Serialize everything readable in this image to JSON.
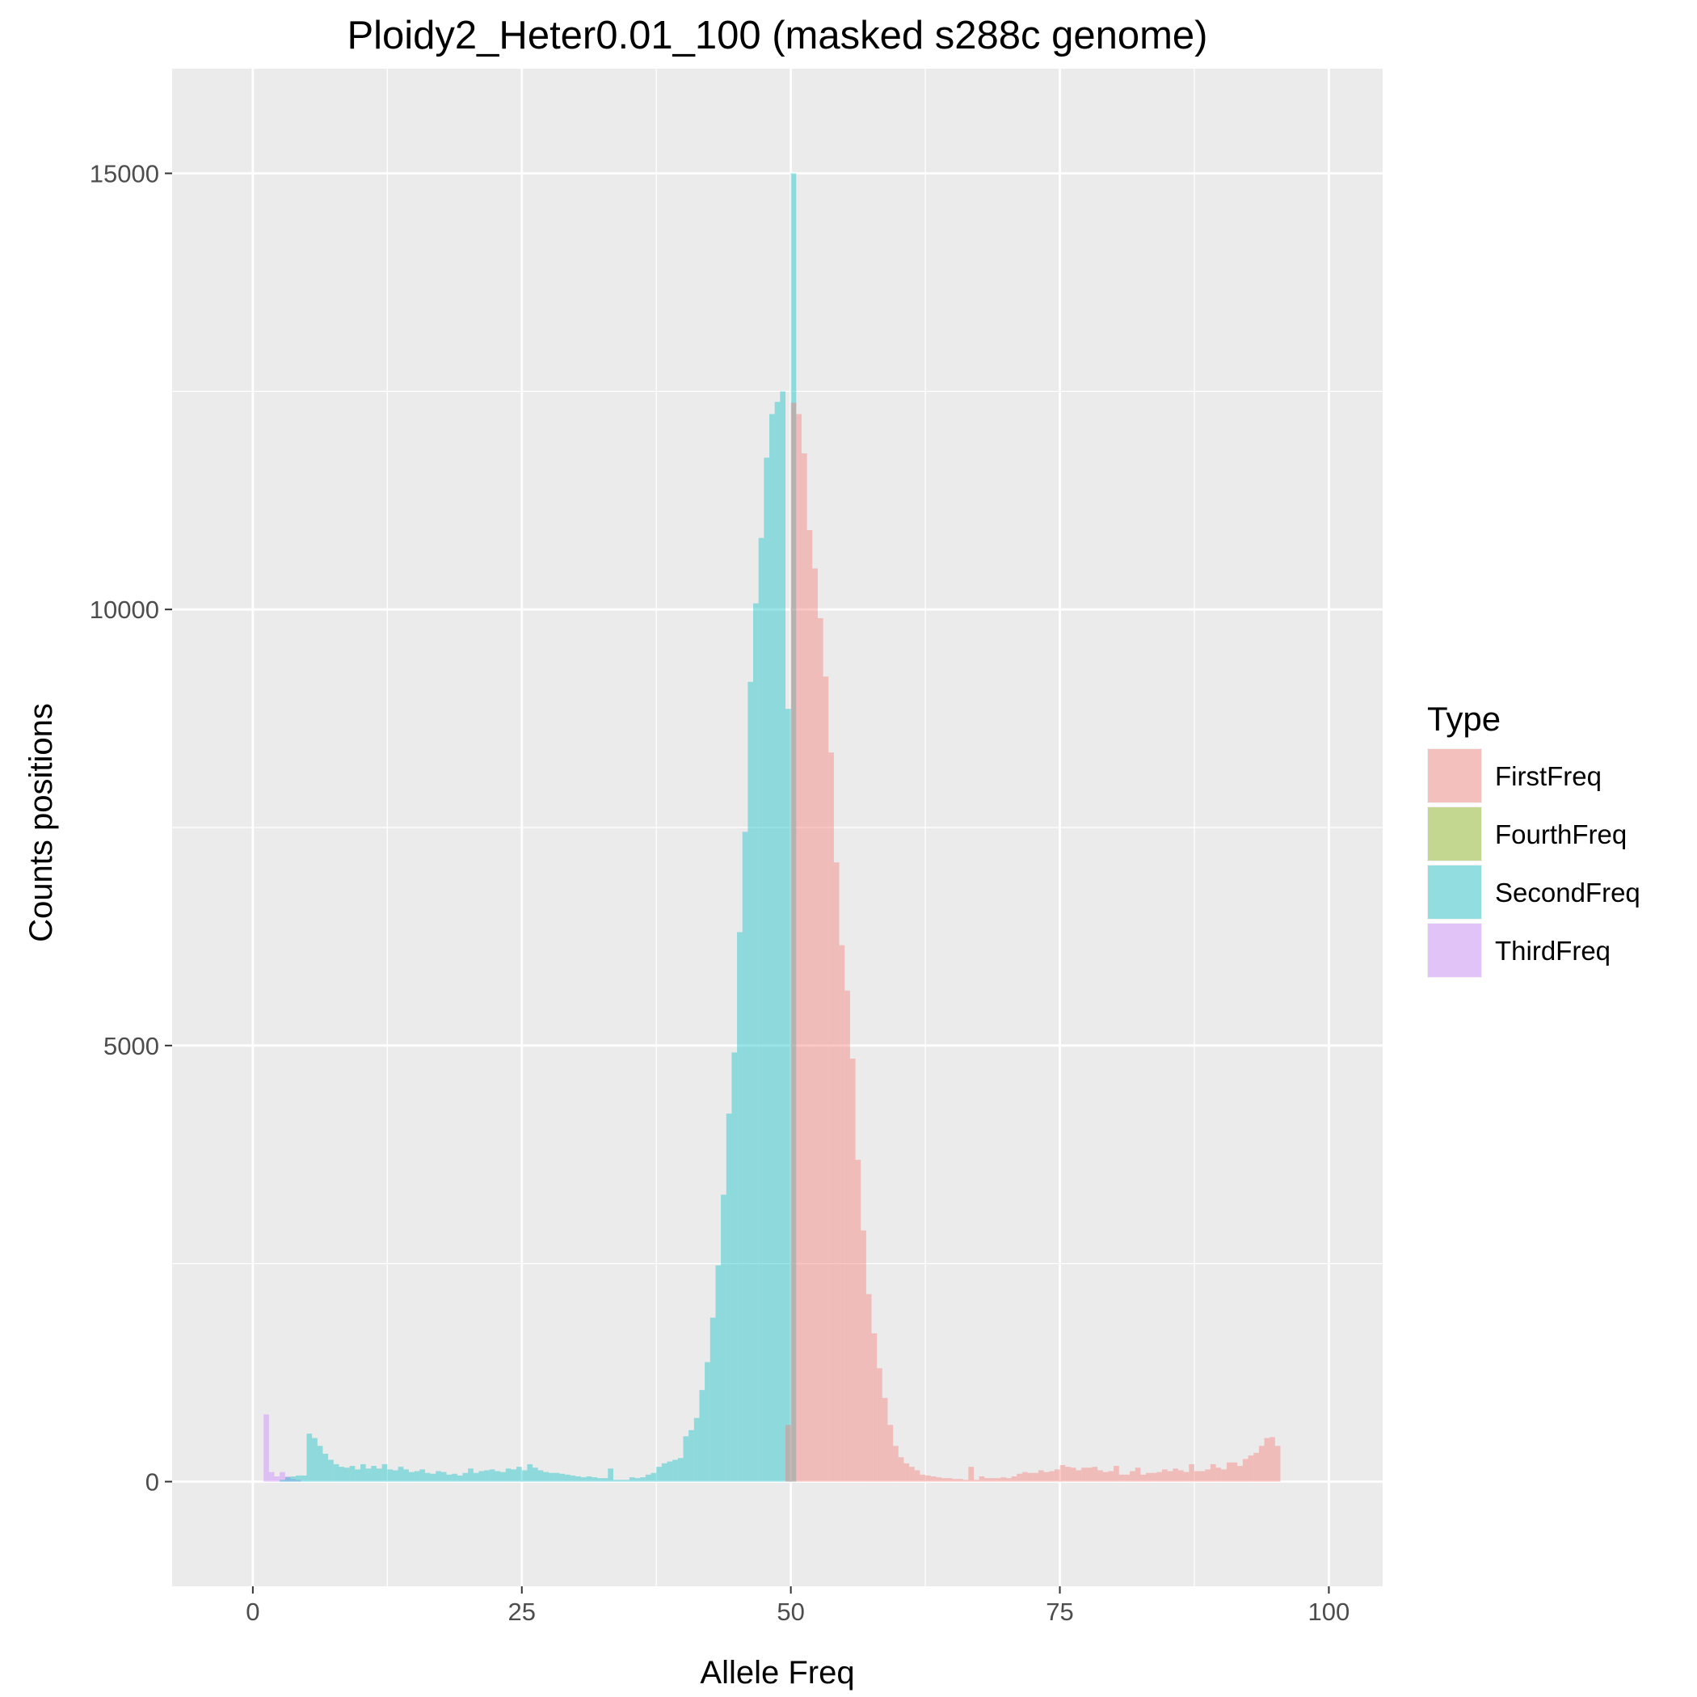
{
  "chart_data": {
    "type": "bar",
    "title": "Ploidy2_Heter0.01_100 (masked s288c genome)",
    "xlabel": "Allele Freq",
    "ylabel": "Counts positions",
    "xlim": [
      -7.5,
      105
    ],
    "ylim": [
      -1200,
      16200
    ],
    "x_ticks": [
      0,
      25,
      50,
      75,
      100
    ],
    "x_tick_labels": [
      "0",
      "25",
      "50",
      "75",
      "100"
    ],
    "y_ticks": [
      0,
      5000,
      10000,
      15000
    ],
    "y_tick_labels": [
      "0",
      "5000",
      "10000",
      "15000"
    ],
    "bin_width": 0.5,
    "legend": {
      "title": "Type",
      "position": "right",
      "items": [
        {
          "label": "FirstFreq",
          "color": "#F8766D"
        },
        {
          "label": "FourthFreq",
          "color": "#7CAE00"
        },
        {
          "label": "SecondFreq",
          "color": "#00BFC4"
        },
        {
          "label": "ThirdFreq",
          "color": "#C77CFF"
        }
      ]
    },
    "series": [
      {
        "name": "ThirdFreq",
        "color": "#C77CFF",
        "x": [
          1.25,
          1.75,
          2.25,
          2.75,
          3.25,
          3.75,
          4.25
        ],
        "values": [
          770,
          110,
          60,
          110,
          60,
          30,
          20
        ]
      },
      {
        "name": "SecondFreq",
        "color": "#00BFC4",
        "x": [
          2.75,
          3.25,
          3.75,
          4.25,
          4.75,
          5.25,
          5.75,
          6.25,
          6.75,
          7.25,
          7.75,
          8.25,
          8.75,
          9.25,
          9.75,
          10.25,
          10.75,
          11.25,
          11.75,
          12.25,
          12.75,
          13.25,
          13.75,
          14.25,
          14.75,
          15.25,
          15.75,
          16.25,
          16.75,
          17.25,
          17.75,
          18.25,
          18.75,
          19.25,
          19.75,
          20.25,
          20.75,
          21.25,
          21.75,
          22.25,
          22.75,
          23.25,
          23.75,
          24.25,
          24.75,
          25.25,
          25.75,
          26.25,
          26.75,
          27.25,
          27.75,
          28.25,
          28.75,
          29.25,
          29.75,
          30.25,
          30.75,
          31.25,
          31.75,
          32.25,
          32.75,
          33.25,
          33.75,
          34.25,
          34.75,
          35.25,
          35.75,
          36.25,
          36.75,
          37.25,
          37.75,
          38.25,
          38.75,
          39.25,
          39.75,
          40.25,
          40.75,
          41.25,
          41.75,
          42.25,
          42.75,
          43.25,
          43.75,
          44.25,
          44.75,
          45.25,
          45.75,
          46.25,
          46.75,
          47.25,
          47.75,
          48.25,
          48.75,
          49.25,
          49.75,
          50.25
        ],
        "values": [
          20,
          50,
          60,
          70,
          70,
          550,
          500,
          410,
          320,
          250,
          200,
          170,
          160,
          180,
          140,
          200,
          150,
          180,
          150,
          200,
          140,
          130,
          170,
          140,
          110,
          120,
          140,
          100,
          90,
          120,
          110,
          80,
          90,
          70,
          100,
          150,
          100,
          120,
          130,
          140,
          120,
          110,
          150,
          140,
          170,
          130,
          200,
          160,
          130,
          110,
          100,
          100,
          90,
          80,
          70,
          60,
          50,
          60,
          50,
          40,
          40,
          150,
          20,
          20,
          20,
          50,
          40,
          50,
          80,
          100,
          170,
          210,
          230,
          250,
          270,
          520,
          590,
          730,
          1050,
          1370,
          1880,
          2480,
          3290,
          4220,
          4920,
          6300,
          7450,
          9170,
          10070,
          10820,
          11740,
          12240,
          12380,
          12500,
          8860,
          15000
        ]
      },
      {
        "name": "FirstFreq",
        "color": "#F8766D",
        "x": [
          49.75,
          50.25,
          50.75,
          51.25,
          51.75,
          52.25,
          52.75,
          53.25,
          53.75,
          54.25,
          54.75,
          55.25,
          55.75,
          56.25,
          56.75,
          57.25,
          57.75,
          58.25,
          58.75,
          59.25,
          59.75,
          60.25,
          60.75,
          61.25,
          61.75,
          62.25,
          62.75,
          63.25,
          63.75,
          64.25,
          64.75,
          65.25,
          65.75,
          66.25,
          66.75,
          67.25,
          67.75,
          68.25,
          68.75,
          69.25,
          69.75,
          70.25,
          70.75,
          71.25,
          71.75,
          72.25,
          72.75,
          73.25,
          73.75,
          74.25,
          74.75,
          75.25,
          75.75,
          76.25,
          76.75,
          77.25,
          77.75,
          78.25,
          78.75,
          79.25,
          79.75,
          80.25,
          80.75,
          81.25,
          81.75,
          82.25,
          82.75,
          83.25,
          83.75,
          84.25,
          84.75,
          85.25,
          85.75,
          86.25,
          86.75,
          87.25,
          87.75,
          88.25,
          88.75,
          89.25,
          89.75,
          90.25,
          90.75,
          91.25,
          91.75,
          92.25,
          92.75,
          93.25,
          93.75,
          94.25,
          94.75,
          95.25
        ],
        "values": [
          650,
          12370,
          12240,
          11790,
          10910,
          10470,
          9900,
          9230,
          8360,
          7100,
          6150,
          5630,
          4850,
          3690,
          2880,
          2150,
          1700,
          1300,
          960,
          650,
          410,
          280,
          210,
          170,
          130,
          80,
          70,
          60,
          50,
          40,
          40,
          30,
          30,
          20,
          170,
          20,
          60,
          40,
          40,
          40,
          50,
          40,
          60,
          90,
          110,
          100,
          100,
          130,
          110,
          120,
          140,
          190,
          170,
          160,
          130,
          160,
          160,
          170,
          130,
          110,
          120,
          180,
          80,
          80,
          120,
          160,
          80,
          100,
          100,
          110,
          140,
          120,
          150,
          130,
          110,
          200,
          120,
          120,
          140,
          200,
          160,
          140,
          220,
          220,
          180,
          260,
          300,
          330,
          410,
          500,
          510,
          410
        ]
      }
    ]
  }
}
